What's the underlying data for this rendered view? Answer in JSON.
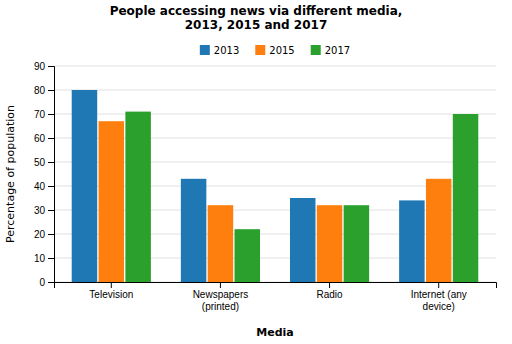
{
  "chart_data": {
    "type": "bar",
    "title": "People accessing news via different media,\n2013, 2015 and 2017",
    "xlabel": "Media",
    "ylabel": "Percentage of population",
    "categories": [
      "Television",
      "Newspapers\n(printed)",
      "Radio",
      "Internet (any\ndevice)"
    ],
    "series": [
      {
        "name": "2013",
        "values": [
          80,
          43,
          35,
          34
        ]
      },
      {
        "name": "2015",
        "values": [
          67,
          32,
          32,
          43
        ]
      },
      {
        "name": "2017",
        "values": [
          71,
          22,
          32,
          70
        ]
      }
    ],
    "ylim": [
      0,
      90
    ],
    "yticks": [
      0,
      10,
      20,
      30,
      40,
      50,
      60,
      70,
      80,
      90
    ],
    "grid": true,
    "legend": "top"
  }
}
